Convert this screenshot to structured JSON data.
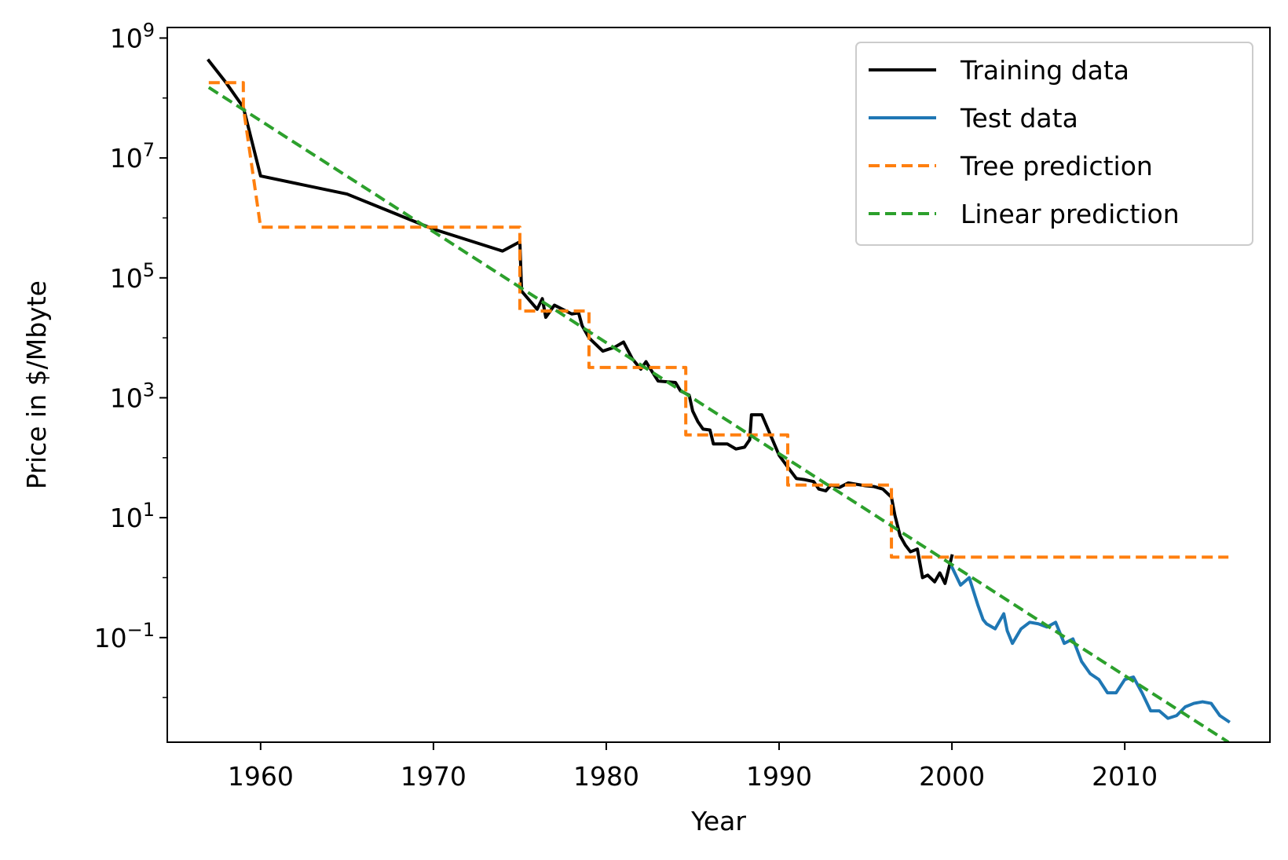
{
  "chart_data": {
    "type": "line",
    "xlabel": "Year",
    "ylabel": "Price in $/Mbyte",
    "xlim": [
      1954.6,
      2018.4
    ],
    "ylim": [
      0.0018,
      1500000000
    ],
    "y_scale": "log",
    "x_ticks": [
      1960,
      1970,
      1980,
      1990,
      2000,
      2010
    ],
    "x_tick_labels": [
      "1960",
      "1970",
      "1980",
      "1990",
      "2000",
      "2010"
    ],
    "y_ticks": [
      {
        "value": 1000000000,
        "base": "10",
        "exp": "9"
      },
      {
        "value": 10000000,
        "base": "10",
        "exp": "7"
      },
      {
        "value": 100000,
        "base": "10",
        "exp": "5"
      },
      {
        "value": 1000,
        "base": "10",
        "exp": "3"
      },
      {
        "value": 10,
        "base": "10",
        "exp": "1"
      },
      {
        "value": 0.1,
        "base": "10",
        "exp": "−1"
      }
    ],
    "grid": false,
    "legend_position": "top-right",
    "series": [
      {
        "name": "Training data",
        "color": "#000000",
        "style": "solid",
        "points": [
          [
            1957.0,
            420000000
          ],
          [
            1958.0,
            180000000
          ],
          [
            1959.0,
            70000000
          ],
          [
            1960.0,
            5000000
          ],
          [
            1965.0,
            2500000
          ],
          [
            1970.0,
            650000
          ],
          [
            1974.0,
            280000
          ],
          [
            1975.0,
            400000
          ],
          [
            1975.1,
            60000
          ],
          [
            1976.0,
            30000
          ],
          [
            1976.3,
            45000
          ],
          [
            1976.5,
            22000
          ],
          [
            1977.0,
            35000
          ],
          [
            1978.0,
            25000
          ],
          [
            1978.4,
            26000
          ],
          [
            1978.6,
            16000
          ],
          [
            1979.0,
            10000
          ],
          [
            1979.8,
            6000
          ],
          [
            1980.5,
            7000
          ],
          [
            1981.0,
            8500
          ],
          [
            1981.5,
            4500
          ],
          [
            1982.0,
            3000
          ],
          [
            1982.3,
            4000
          ],
          [
            1982.5,
            3200
          ],
          [
            1983.0,
            1900
          ],
          [
            1984.0,
            1800
          ],
          [
            1984.3,
            1300
          ],
          [
            1984.8,
            1100
          ],
          [
            1985.0,
            600
          ],
          [
            1985.3,
            400
          ],
          [
            1985.6,
            300
          ],
          [
            1986.0,
            290
          ],
          [
            1986.2,
            170
          ],
          [
            1987.0,
            170
          ],
          [
            1987.5,
            140
          ],
          [
            1988.0,
            150
          ],
          [
            1988.3,
            200
          ],
          [
            1988.4,
            520
          ],
          [
            1989.0,
            520
          ],
          [
            1989.4,
            280
          ],
          [
            1990.0,
            110
          ],
          [
            1990.5,
            70
          ],
          [
            1991.0,
            45
          ],
          [
            1991.5,
            43
          ],
          [
            1992.0,
            40
          ],
          [
            1992.3,
            30
          ],
          [
            1992.7,
            28
          ],
          [
            1993.0,
            35
          ],
          [
            1993.5,
            32
          ],
          [
            1994.0,
            38
          ],
          [
            1994.5,
            36
          ],
          [
            1995.0,
            34
          ],
          [
            1995.5,
            33
          ],
          [
            1996.0,
            30
          ],
          [
            1996.5,
            22
          ],
          [
            1996.7,
            11
          ],
          [
            1997.0,
            5
          ],
          [
            1997.3,
            3.5
          ],
          [
            1997.6,
            2.7
          ],
          [
            1998.0,
            3.0
          ],
          [
            1998.3,
            1.0
          ],
          [
            1998.6,
            1.1
          ],
          [
            1999.0,
            0.85
          ],
          [
            1999.3,
            1.2
          ],
          [
            1999.6,
            0.8
          ],
          [
            2000.0,
            2.3
          ]
        ]
      },
      {
        "name": "Test data",
        "color": "#1f77b4",
        "style": "solid",
        "points": [
          [
            2000.0,
            1.5
          ],
          [
            2000.5,
            0.75
          ],
          [
            2001.0,
            1.0
          ],
          [
            2001.5,
            0.35
          ],
          [
            2001.8,
            0.2
          ],
          [
            2002.0,
            0.17
          ],
          [
            2002.5,
            0.14
          ],
          [
            2003.0,
            0.25
          ],
          [
            2003.2,
            0.13
          ],
          [
            2003.5,
            0.08
          ],
          [
            2004.0,
            0.14
          ],
          [
            2004.5,
            0.18
          ],
          [
            2005.0,
            0.17
          ],
          [
            2005.5,
            0.15
          ],
          [
            2006.0,
            0.18
          ],
          [
            2006.5,
            0.08
          ],
          [
            2007.0,
            0.095
          ],
          [
            2007.5,
            0.04
          ],
          [
            2008.0,
            0.025
          ],
          [
            2008.5,
            0.02
          ],
          [
            2009.0,
            0.012
          ],
          [
            2009.5,
            0.012
          ],
          [
            2010.0,
            0.02
          ],
          [
            2010.5,
            0.022
          ],
          [
            2011.0,
            0.012
          ],
          [
            2011.5,
            0.006
          ],
          [
            2012.0,
            0.006
          ],
          [
            2012.5,
            0.0045
          ],
          [
            2013.0,
            0.005
          ],
          [
            2013.5,
            0.007
          ],
          [
            2014.0,
            0.008
          ],
          [
            2014.5,
            0.0085
          ],
          [
            2015.0,
            0.008
          ],
          [
            2015.5,
            0.005
          ],
          [
            2016.0,
            0.004
          ]
        ]
      },
      {
        "name": "Tree prediction",
        "color": "#ff7f0e",
        "style": "dashed",
        "points": [
          [
            1957.0,
            180000000
          ],
          [
            1959.0,
            180000000
          ],
          [
            1959.0,
            70000000
          ],
          [
            1960.0,
            700000
          ],
          [
            1975.0,
            700000
          ],
          [
            1975.0,
            28000
          ],
          [
            1979.0,
            28000
          ],
          [
            1979.0,
            3200
          ],
          [
            1984.6,
            3200
          ],
          [
            1984.6,
            240
          ],
          [
            1990.5,
            240
          ],
          [
            1990.5,
            35
          ],
          [
            1996.5,
            35
          ],
          [
            1996.5,
            2.2
          ],
          [
            2016.0,
            2.2
          ]
        ]
      },
      {
        "name": "Linear prediction",
        "color": "#2ca02c",
        "style": "dashed",
        "points": [
          [
            1957.0,
            150000000
          ],
          [
            2016.0,
            0.0018
          ]
        ]
      }
    ]
  }
}
